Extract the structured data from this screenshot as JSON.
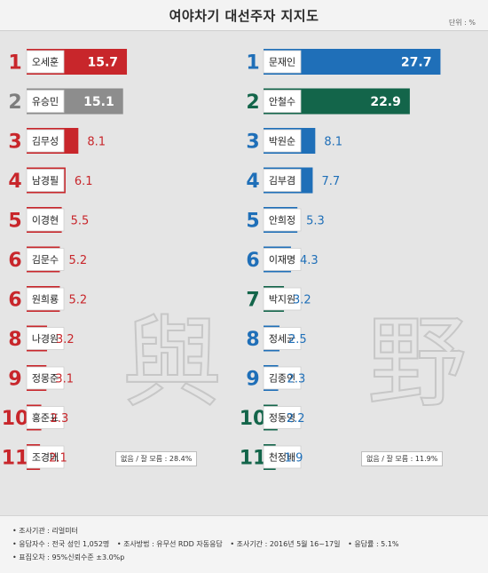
{
  "title": "여야차기 대선주자 지지도",
  "unit": "단위 : %",
  "watermark": {
    "left": "與",
    "right": "野"
  },
  "colors": {
    "red": "#c8262b",
    "gray": "#8d8d8d",
    "blue": "#1f6fb8",
    "green": "#13654a"
  },
  "chart_data": [
    {
      "type": "bar",
      "categories": [
        "오세훈",
        "유승민",
        "김무성",
        "남경필",
        "이경현",
        "김문수",
        "원희룡",
        "나경원",
        "정몽준",
        "홍준표",
        "조경태"
      ],
      "ranks": [
        "1",
        "2",
        "3",
        "4",
        "5",
        "6",
        "6",
        "8",
        "9",
        "10",
        "11"
      ],
      "values": [
        15.7,
        15.1,
        8.1,
        6.1,
        5.5,
        5.2,
        5.2,
        3.2,
        3.1,
        2.3,
        2.1
      ],
      "colors": [
        "red",
        "gray",
        "red",
        "red",
        "red",
        "red",
        "red",
        "red",
        "red",
        "red",
        "red"
      ],
      "no_answer": "없음 / 잘 모름 : 28.4%"
    },
    {
      "type": "bar",
      "categories": [
        "문재인",
        "안철수",
        "박원순",
        "김부겸",
        "안희정",
        "이재명",
        "박지원",
        "정세균",
        "김종인",
        "정동영",
        "천정배"
      ],
      "ranks": [
        "1",
        "2",
        "3",
        "4",
        "5",
        "6",
        "7",
        "8",
        "9",
        "10",
        "11"
      ],
      "values": [
        27.7,
        22.9,
        8.1,
        7.7,
        5.3,
        4.3,
        3.2,
        2.5,
        2.3,
        2.2,
        1.9
      ],
      "colors": [
        "blue",
        "green",
        "blue",
        "blue",
        "blue",
        "blue",
        "green",
        "blue",
        "blue",
        "green",
        "green"
      ],
      "no_answer": "없음 / 잘 모름 : 11.9%"
    }
  ],
  "footer": {
    "line1": "• 조사기관 : 리얼미터",
    "line2a": "• 응답자수 : 전국 성인 1,052명",
    "line2b": "• 조사방법 : 유무선 RDD 자동응답",
    "line2c": "• 조사기간 : 2016년 5월 16~17일",
    "line2d": "• 응답률 : 5.1%",
    "line3": "• 표집오차 : 95%신뢰수준 ±3.0%p"
  }
}
